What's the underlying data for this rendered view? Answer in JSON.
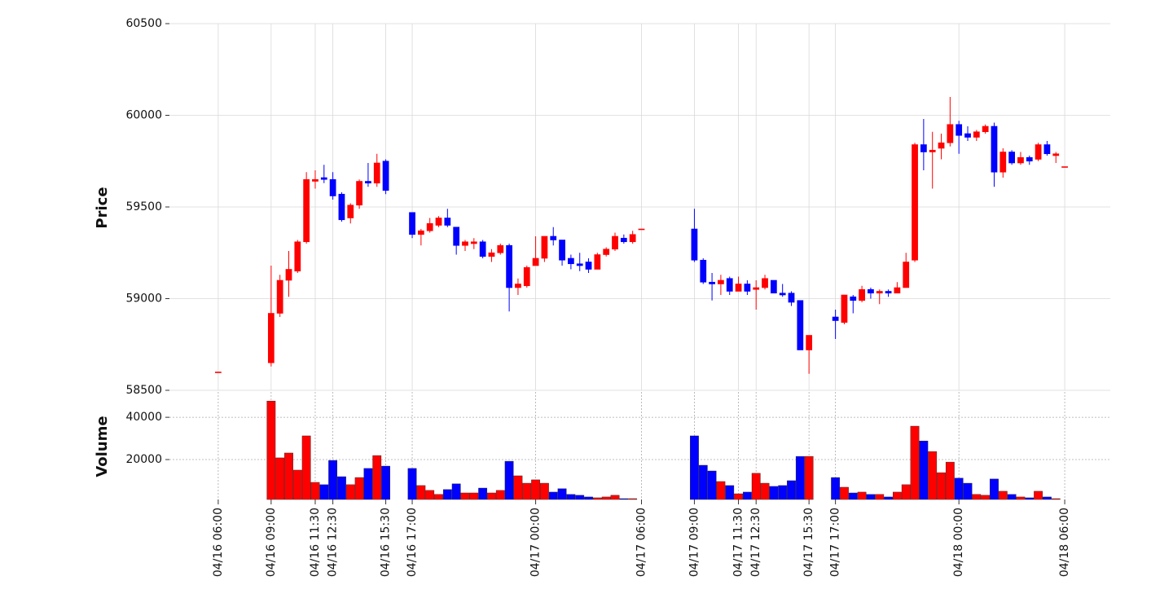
{
  "chart_data": {
    "type": "candlestick",
    "ylabel": "Price",
    "volume_label": "Volume",
    "up_color": "#ff0000",
    "down_color": "#0000ff",
    "grid": true,
    "ylim": [
      58500,
      60500
    ],
    "yticks": [
      58500,
      59000,
      59500,
      60000,
      60500
    ],
    "volume_ylim": [
      1100,
      52000
    ],
    "volume_yticks": [
      20000,
      40000
    ],
    "xlim": [
      "04/16 03:14",
      "04/18 08:35"
    ],
    "xticks": [
      "04/16 06:00",
      "04/16 09:00",
      "04/16 11:30",
      "04/16 12:30",
      "04/16 15:30",
      "04/16 17:00",
      "04/17 00:00",
      "04/17 06:00",
      "04/17 09:00",
      "04/17 11:30",
      "04/17 12:30",
      "04/17 15:30",
      "04/17 17:00",
      "04/18 00:00",
      "04/18 06:00"
    ],
    "x": [
      "04/16 06:00",
      "04/16 09:00",
      "04/16 09:30",
      "04/16 10:00",
      "04/16 10:30",
      "04/16 11:00",
      "04/16 11:30",
      "04/16 12:00",
      "04/16 12:30",
      "04/16 13:00",
      "04/16 13:30",
      "04/16 14:00",
      "04/16 14:30",
      "04/16 15:00",
      "04/16 15:30",
      "04/16 17:00",
      "04/16 17:30",
      "04/16 18:00",
      "04/16 18:30",
      "04/16 19:00",
      "04/16 19:30",
      "04/16 20:00",
      "04/16 20:30",
      "04/16 21:00",
      "04/16 21:30",
      "04/16 22:00",
      "04/16 22:30",
      "04/16 23:00",
      "04/16 23:30",
      "04/17 00:00",
      "04/17 00:30",
      "04/17 01:00",
      "04/17 01:30",
      "04/17 02:00",
      "04/17 02:30",
      "04/17 03:00",
      "04/17 03:30",
      "04/17 04:00",
      "04/17 04:30",
      "04/17 05:00",
      "04/17 05:30",
      "04/17 06:00",
      "04/17 09:00",
      "04/17 09:30",
      "04/17 10:00",
      "04/17 10:30",
      "04/17 11:00",
      "04/17 11:30",
      "04/17 12:00",
      "04/17 12:30",
      "04/17 13:00",
      "04/17 13:30",
      "04/17 14:00",
      "04/17 14:30",
      "04/17 15:00",
      "04/17 15:30",
      "04/17 17:00",
      "04/17 17:30",
      "04/17 18:00",
      "04/17 18:30",
      "04/17 19:00",
      "04/17 19:30",
      "04/17 20:00",
      "04/17 20:30",
      "04/17 21:00",
      "04/17 21:30",
      "04/17 22:00",
      "04/17 22:30",
      "04/17 23:00",
      "04/17 23:30",
      "04/18 00:00",
      "04/18 00:30",
      "04/18 01:00",
      "04/18 01:30",
      "04/18 02:00",
      "04/18 02:30",
      "04/18 03:00",
      "04/18 03:30",
      "04/18 04:00",
      "04/18 04:30",
      "04/18 05:00",
      "04/18 05:30",
      "04/18 06:00"
    ],
    "open": [
      58600,
      58650,
      58920,
      59100,
      59150,
      59310,
      59640,
      59660,
      59650,
      59570,
      59440,
      59510,
      59640,
      59630,
      59750,
      59470,
      59350,
      59370,
      59400,
      59440,
      59390,
      59290,
      59300,
      59310,
      59230,
      59250,
      59290,
      59060,
      59070,
      59180,
      59220,
      59340,
      59320,
      59220,
      59190,
      59200,
      59160,
      59240,
      59270,
      59330,
      59310,
      59380,
      59380,
      59210,
      59090,
      59080,
      59110,
      59040,
      59080,
      59050,
      59060,
      59100,
      59030,
      59030,
      58990,
      58720,
      58900,
      58870,
      59010,
      58990,
      59050,
      59030,
      59040,
      59030,
      59060,
      59210,
      59840,
      59800,
      59820,
      59850,
      59950,
      59900,
      59880,
      59910,
      59940,
      59690,
      59800,
      59740,
      59770,
      59760,
      59840,
      59780,
      59720
    ],
    "high": [
      58600,
      59180,
      59130,
      59260,
      59320,
      59690,
      59700,
      59730,
      59690,
      59580,
      59520,
      59650,
      59740,
      59790,
      59760,
      59470,
      59380,
      59440,
      59450,
      59490,
      59390,
      59320,
      59330,
      59320,
      59270,
      59300,
      59300,
      59110,
      59180,
      59340,
      59340,
      59390,
      59320,
      59240,
      59250,
      59220,
      59250,
      59280,
      59360,
      59350,
      59370,
      59380,
      59490,
      59220,
      59140,
      59130,
      59120,
      59120,
      59100,
      59100,
      59130,
      59100,
      59080,
      59040,
      58990,
      58800,
      58940,
      59020,
      59020,
      59070,
      59060,
      59050,
      59050,
      59090,
      59250,
      59850,
      59980,
      59910,
      59900,
      60100,
      59970,
      59940,
      59920,
      59950,
      59960,
      59820,
      59810,
      59800,
      59780,
      59850,
      59860,
      59800,
      59720
    ],
    "low": [
      58600,
      58630,
      58900,
      59010,
      59140,
      59300,
      59600,
      59630,
      59540,
      59420,
      59410,
      59490,
      59610,
      59610,
      59570,
      59330,
      59290,
      59360,
      59390,
      59390,
      59240,
      59260,
      59270,
      59220,
      59200,
      59240,
      58930,
      59020,
      59060,
      59180,
      59200,
      59290,
      59180,
      59160,
      59150,
      59140,
      59160,
      59230,
      59260,
      59300,
      59300,
      59380,
      59200,
      59080,
      58990,
      59020,
      59020,
      59040,
      59020,
      58940,
      59050,
      59030,
      59010,
      58960,
      58720,
      58590,
      58780,
      58860,
      58920,
      58980,
      59000,
      58970,
      59010,
      59030,
      59060,
      59200,
      59700,
      59600,
      59760,
      59830,
      59790,
      59860,
      59860,
      59900,
      59610,
      59660,
      59730,
      59730,
      59730,
      59750,
      59780,
      59740,
      59720
    ],
    "close": [
      58600,
      58920,
      59100,
      59160,
      59310,
      59650,
      59650,
      59650,
      59560,
      59430,
      59510,
      59640,
      59630,
      59740,
      59590,
      59350,
      59370,
      59410,
      59440,
      59400,
      59290,
      59310,
      59310,
      59230,
      59250,
      59290,
      59060,
      59080,
      59170,
      59220,
      59340,
      59320,
      59210,
      59190,
      59180,
      59160,
      59240,
      59270,
      59340,
      59310,
      59350,
      59380,
      59210,
      59090,
      59080,
      59100,
      59040,
      59080,
      59040,
      59060,
      59110,
      59030,
      59020,
      58980,
      58720,
      58800,
      58880,
      59020,
      58990,
      59050,
      59030,
      59040,
      59030,
      59060,
      59200,
      59840,
      59800,
      59810,
      59850,
      59950,
      59890,
      59880,
      59910,
      59940,
      59690,
      59800,
      59740,
      59770,
      59750,
      59840,
      59790,
      59790,
      59720
    ],
    "volume": [
      300,
      47700,
      20800,
      23100,
      15000,
      31200,
      9200,
      8100,
      19600,
      11900,
      8100,
      11500,
      15800,
      21900,
      16900,
      15800,
      7700,
      5400,
      3500,
      5800,
      8500,
      4200,
      4200,
      6500,
      4200,
      5400,
      19200,
      12300,
      8800,
      10400,
      8800,
      4600,
      6200,
      3500,
      3100,
      2300,
      1900,
      2300,
      3100,
      1500,
      1500,
      400,
      31200,
      17300,
      14600,
      9600,
      7700,
      3800,
      4600,
      13500,
      8800,
      7300,
      7700,
      10000,
      21500,
      21500,
      11500,
      6900,
      4200,
      4600,
      3500,
      3500,
      2300,
      4600,
      8100,
      35800,
      28800,
      23800,
      13800,
      18800,
      11200,
      8800,
      3500,
      3100,
      10800,
      5000,
      3500,
      2300,
      1900,
      5000,
      2300,
      1500,
      400
    ]
  }
}
